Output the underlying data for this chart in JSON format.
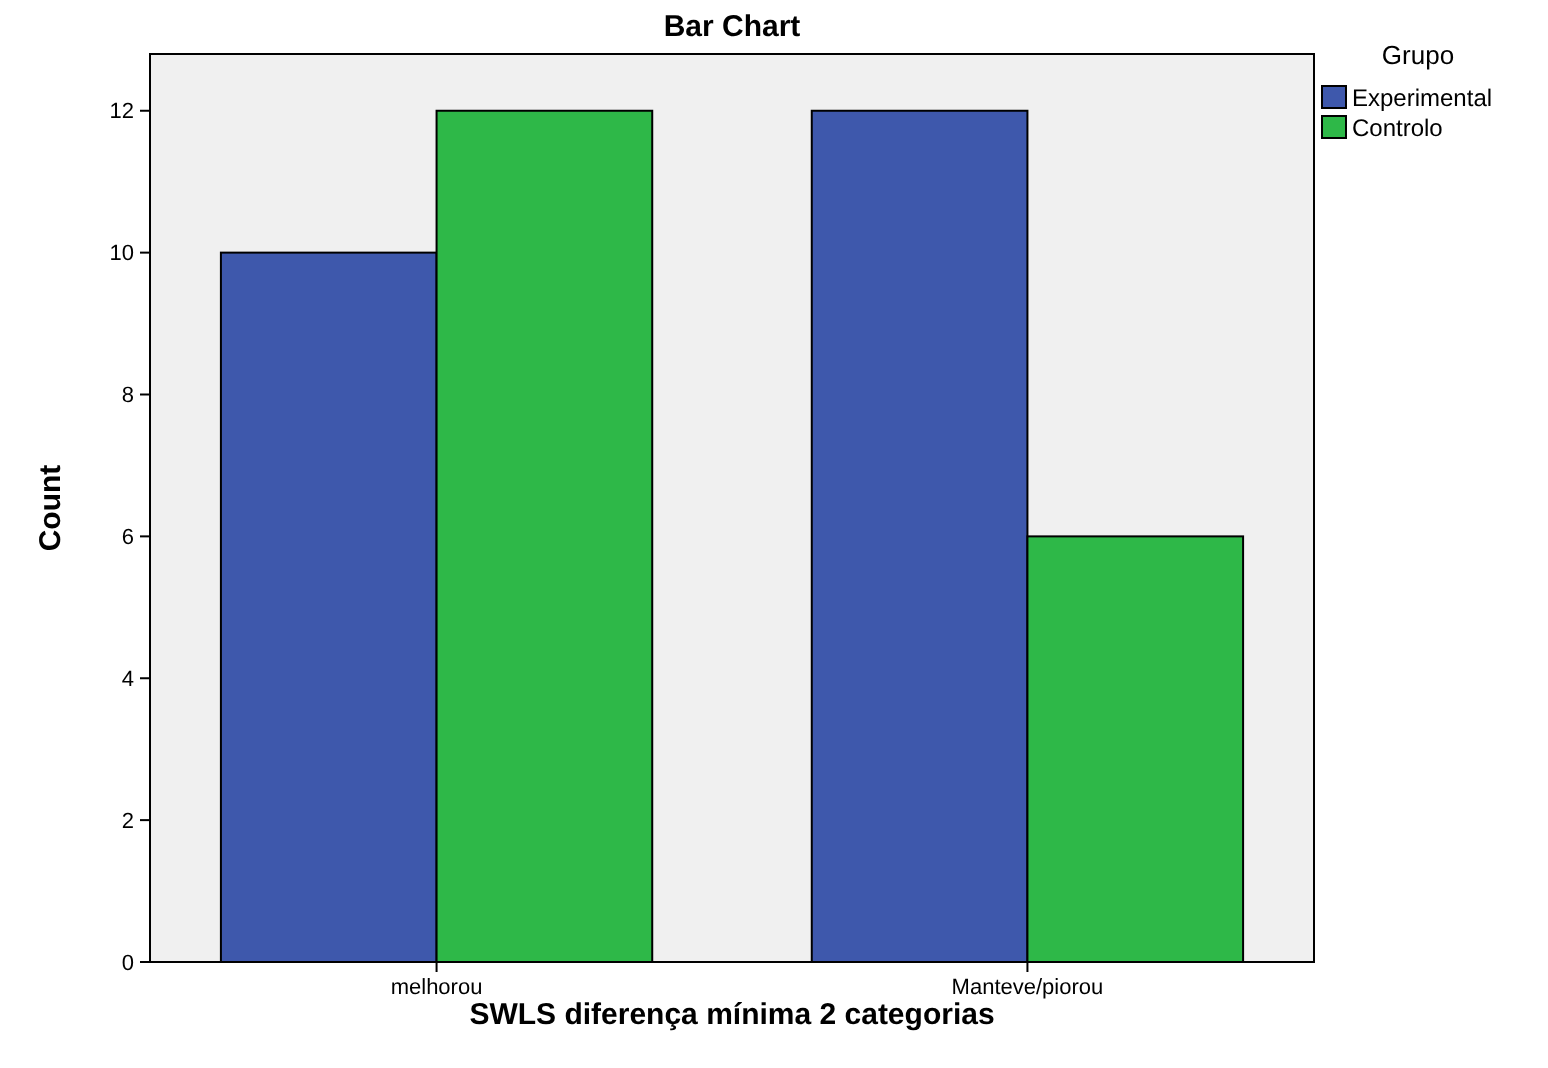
{
  "chart_data": {
    "type": "bar",
    "title": "Bar Chart",
    "xlabel": "SWLS diferença mínima 2 categorias",
    "ylabel": "Count",
    "legend_title": "Grupo",
    "categories": [
      "melhorou",
      "Manteve/piorou"
    ],
    "series": [
      {
        "name": "Experimental",
        "color": "#3e58ac",
        "values": [
          10,
          12
        ]
      },
      {
        "name": "Controlo",
        "color": "#2eb848",
        "values": [
          12,
          6
        ]
      }
    ],
    "ylim": [
      0,
      12.8
    ],
    "yticks": [
      0,
      2,
      4,
      6,
      8,
      10,
      12
    ],
    "grid": false,
    "legend": "top right"
  }
}
